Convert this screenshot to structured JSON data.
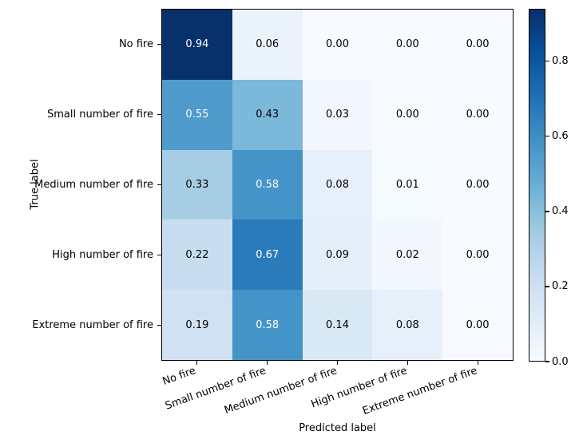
{
  "figure": {
    "background": "#ffffff"
  },
  "chart_data": {
    "type": "heatmap",
    "subtype": "confusion-matrix",
    "title": "",
    "xlabel": "Predicted label",
    "ylabel": "True label",
    "x_categories": [
      "No fire",
      "Small number of fire",
      "Medium number of fire",
      "High number of fire",
      "Extreme number of fire"
    ],
    "y_categories": [
      "No fire",
      "Small number of fire",
      "Medium number of fire",
      "High number of fire",
      "Extreme number of fire"
    ],
    "matrix": [
      [
        0.94,
        0.06,
        0.0,
        0.0,
        0.0
      ],
      [
        0.55,
        0.43,
        0.03,
        0.0,
        0.0
      ],
      [
        0.33,
        0.58,
        0.08,
        0.01,
        0.0
      ],
      [
        0.22,
        0.67,
        0.09,
        0.02,
        0.0
      ],
      [
        0.19,
        0.58,
        0.14,
        0.08,
        0.0
      ]
    ],
    "value_decimals": 2,
    "vmin": 0.0,
    "vmax": 0.94,
    "text_color_threshold": 0.47,
    "cell_text_color_light": "#ffffff",
    "cell_text_color_dark": "#000000",
    "colormap": {
      "name": "Blues",
      "anchors": [
        "#f7fbff",
        "#deebf7",
        "#c6dbef",
        "#9ecae1",
        "#6baed6",
        "#4292c6",
        "#2171b5",
        "#08519c",
        "#08306b"
      ]
    },
    "colorbar": {
      "tick_labels": [
        "0.0",
        "0.2",
        "0.4",
        "0.6",
        "0.8"
      ],
      "tick_values": [
        0.0,
        0.2,
        0.4,
        0.6,
        0.8
      ],
      "position": "right"
    },
    "grid": false,
    "legend": false
  }
}
